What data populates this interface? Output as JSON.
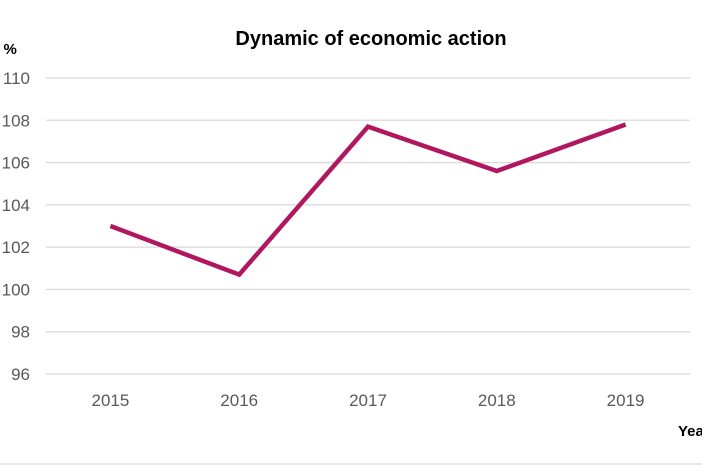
{
  "chart_data": {
    "type": "line",
    "title": "Dynamic of economic action",
    "ylabel": "in %",
    "xlabel": "Years",
    "categories": [
      "2015",
      "2016",
      "2017",
      "2018",
      "2019"
    ],
    "series": [
      {
        "values": [
          103.0,
          100.7,
          107.7,
          105.6,
          107.8
        ]
      }
    ],
    "ylim": [
      96,
      110
    ],
    "yticks": [
      "96",
      "98",
      "100",
      "102",
      "104",
      "106",
      "108",
      "110"
    ],
    "grid": true,
    "line_color": "#b0175f"
  }
}
